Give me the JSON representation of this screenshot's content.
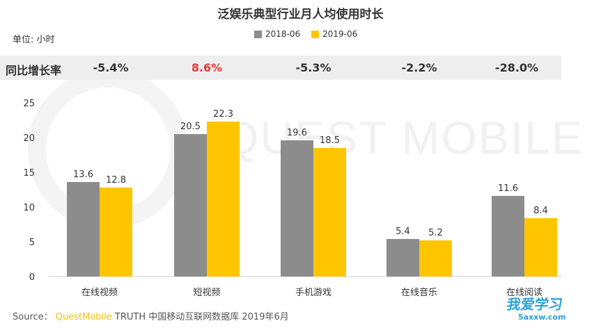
{
  "title": "泛娱乐典型行业月人均使用时长",
  "unit_label": "单位: 小时",
  "growth_label": "同比增长率",
  "growth_values": [
    "-5.4%",
    "8.6%",
    "-5.3%",
    "-2.2%",
    "-28.0%"
  ],
  "colors": {
    "series1": "#8c8c8c",
    "series2": "#ffc600",
    "positive_growth": "#e03a3a",
    "axis": "#cccccc"
  },
  "chart_data": {
    "type": "bar",
    "categories": [
      "在线视频",
      "短视频",
      "手机游戏",
      "在线音乐",
      "在线阅读"
    ],
    "series": [
      {
        "name": "2018-06",
        "values": [
          13.6,
          20.5,
          19.6,
          5.4,
          11.6
        ]
      },
      {
        "name": "2019-06",
        "values": [
          12.8,
          22.3,
          18.5,
          5.2,
          8.4
        ]
      }
    ],
    "ylim": [
      0,
      25
    ],
    "yticks": [
      0,
      5,
      10,
      15,
      20,
      25
    ],
    "legend": "top-center",
    "grid": false
  },
  "watermark": "QUEST MOBILE",
  "source": {
    "prefix": "Source：",
    "brand": "QuestMobile",
    "rest": " TRUTH 中国移动互联网数据库 2019年6月"
  },
  "logo": {
    "main": "我爱学习",
    "sub": "5axxw.com"
  }
}
